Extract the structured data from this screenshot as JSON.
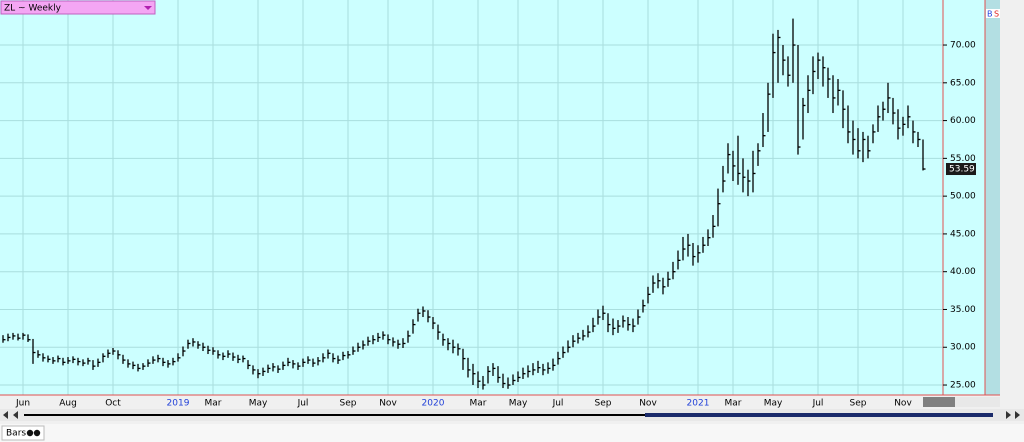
{
  "chart_data": {
    "type": "hlc",
    "title": "ZL ~ Weekly",
    "categories": [
      null,
      null,
      null,
      null,
      "Jun",
      null,
      null,
      null,
      null,
      null,
      null,
      null,
      null,
      "Aug",
      null,
      null,
      null,
      null,
      null,
      null,
      null,
      null,
      "Oct",
      null,
      null,
      null,
      null,
      null,
      null,
      null,
      null,
      null,
      null,
      null,
      null,
      "2019",
      null,
      null,
      null,
      null,
      null,
      null,
      "Mar",
      null,
      null,
      null,
      null,
      null,
      null,
      null,
      null,
      "May",
      null,
      null,
      null,
      null,
      null,
      null,
      null,
      null,
      "Jul",
      null,
      null,
      null,
      null,
      null,
      null,
      null,
      null,
      "Sep",
      null,
      null,
      null,
      null,
      null,
      null,
      null,
      "Nov",
      null,
      null,
      null,
      null,
      null,
      null,
      null,
      null,
      "2020",
      null,
      null,
      null,
      null,
      null,
      null,
      null,
      null,
      "Mar",
      null,
      null,
      null,
      null,
      null,
      null,
      null,
      "May",
      null,
      null,
      null,
      null,
      null,
      null,
      null,
      "Jul",
      null,
      null,
      null,
      null,
      null,
      null,
      null,
      null,
      "Sep",
      null,
      null,
      null,
      null,
      null,
      null,
      null,
      null,
      "Nov",
      null,
      null,
      null,
      null,
      null,
      null,
      null,
      null,
      null,
      "2021",
      null,
      null,
      null,
      null,
      null,
      null,
      "Mar",
      null,
      null,
      null,
      null,
      null,
      null,
      null,
      "May",
      null,
      null,
      null,
      null,
      null,
      null,
      null,
      null,
      "Jul",
      null,
      null,
      null,
      null,
      null,
      null,
      null,
      "Sep",
      null,
      null,
      null,
      null,
      null,
      null,
      null,
      null,
      "Nov",
      null,
      null,
      null,
      null
    ],
    "high": [
      31.6,
      31.8,
      31.9,
      31.8,
      31.9,
      31.7,
      31.1,
      29.6,
      29.2,
      28.9,
      28.7,
      28.9,
      28.6,
      28.7,
      28.8,
      28.6,
      28.4,
      28.6,
      28.3,
      28.5,
      29.2,
      29.7,
      29.9,
      29.6,
      29.0,
      28.4,
      28.1,
      27.8,
      27.9,
      28.4,
      28.8,
      29.0,
      28.6,
      28.3,
      28.6,
      29.2,
      30.1,
      31.0,
      31.2,
      30.8,
      30.6,
      30.2,
      30.0,
      29.6,
      29.3,
      29.6,
      29.3,
      29.0,
      28.9,
      28.3,
      27.6,
      27.1,
      27.3,
      27.7,
      27.9,
      27.6,
      28.1,
      28.6,
      28.3,
      28.0,
      28.5,
      28.8,
      28.5,
      28.7,
      29.2,
      29.7,
      29.2,
      28.9,
      29.4,
      29.5,
      30.1,
      30.6,
      30.9,
      31.4,
      31.6,
      31.9,
      32.1,
      31.7,
      31.3,
      31.0,
      31.2,
      32.2,
      33.7,
      35.1,
      35.4,
      34.9,
      34.0,
      33.0,
      31.8,
      31.2,
      31.0,
      30.5,
      29.8,
      28.6,
      27.8,
      26.8,
      26.2,
      27.5,
      27.9,
      27.5,
      26.5,
      26.0,
      26.4,
      26.8,
      27.3,
      27.6,
      27.9,
      28.2,
      27.8,
      28.0,
      28.5,
      29.4,
      30.1,
      30.9,
      31.6,
      31.9,
      32.3,
      32.9,
      33.9,
      35.0,
      35.5,
      34.5,
      33.8,
      33.6,
      34.2,
      34.0,
      33.8,
      35.0,
      36.3,
      38.0,
      39.5,
      39.8,
      39.2,
      40.0,
      41.3,
      42.8,
      44.6,
      45.0,
      43.8,
      43.5,
      44.6,
      45.6,
      47.5,
      51.0,
      54.0,
      57.0,
      56.0,
      58.0,
      55.0,
      53.5,
      56.0,
      57.0,
      61.0,
      65.0,
      71.5,
      72.0,
      70.0,
      68.5,
      73.5,
      70.0,
      63.0,
      66.0,
      68.5,
      69.0,
      68.5,
      67.0,
      66.0,
      65.5,
      64.0,
      62.0,
      60.0,
      59.0,
      58.5,
      58.0,
      59.5,
      62.0,
      62.5,
      65.0,
      63.0,
      61.5,
      60.5,
      62.0,
      60.0,
      58.5,
      57.5
    ],
    "low": [
      30.6,
      30.8,
      31.0,
      30.9,
      31.0,
      30.7,
      27.8,
      28.6,
      28.1,
      28.0,
      27.8,
      28.0,
      27.6,
      27.8,
      27.9,
      27.6,
      27.5,
      27.7,
      27.0,
      27.4,
      28.0,
      28.6,
      29.0,
      28.4,
      27.8,
      27.3,
      27.1,
      26.8,
      27.0,
      27.4,
      27.8,
      28.0,
      27.5,
      27.3,
      27.6,
      28.1,
      28.8,
      29.8,
      30.1,
      29.8,
      29.5,
      29.1,
      29.0,
      28.5,
      28.3,
      28.6,
      28.2,
      27.9,
      28.0,
      27.1,
      26.4,
      25.9,
      26.2,
      26.6,
      26.8,
      26.6,
      27.0,
      27.5,
      27.2,
      27.0,
      27.4,
      27.8,
      27.4,
      27.6,
      28.0,
      28.5,
      28.0,
      27.8,
      28.3,
      28.5,
      29.0,
      29.4,
      29.7,
      30.2,
      30.4,
      30.7,
      31.0,
      30.4,
      30.1,
      29.8,
      29.9,
      30.6,
      31.8,
      33.4,
      34.0,
      33.3,
      32.4,
      31.0,
      30.2,
      29.6,
      29.2,
      28.9,
      27.0,
      26.0,
      25.0,
      24.6,
      24.4,
      25.2,
      26.2,
      25.3,
      24.6,
      24.5,
      25.0,
      25.4,
      25.8,
      26.0,
      26.3,
      26.6,
      26.3,
      26.5,
      26.9,
      27.7,
      28.6,
      29.3,
      30.0,
      30.5,
      30.9,
      31.3,
      32.0,
      33.0,
      33.6,
      32.0,
      31.6,
      31.9,
      32.6,
      32.2,
      32.0,
      33.0,
      34.6,
      35.8,
      37.2,
      37.8,
      37.0,
      38.0,
      39.0,
      40.3,
      41.5,
      42.0,
      40.8,
      41.2,
      42.5,
      43.4,
      44.5,
      46.0,
      50.5,
      53.0,
      52.0,
      51.5,
      50.5,
      50.0,
      50.5,
      54.0,
      56.5,
      58.5,
      63.0,
      65.0,
      66.0,
      64.5,
      65.0,
      55.5,
      57.5,
      61.0,
      63.5,
      65.5,
      64.5,
      63.0,
      61.0,
      62.0,
      59.0,
      57.0,
      55.5,
      55.0,
      54.5,
      55.0,
      57.0,
      58.5,
      60.0,
      61.0,
      59.5,
      57.5,
      58.0,
      59.0,
      57.0,
      56.5,
      53.4
    ],
    "close": [
      31.0,
      31.3,
      31.5,
      31.2,
      31.6,
      31.0,
      29.3,
      29.0,
      28.6,
      28.4,
      28.2,
      28.5,
      28.0,
      28.2,
      28.4,
      28.1,
      27.9,
      28.2,
      27.5,
      28.0,
      28.8,
      29.2,
      29.5,
      29.0,
      28.3,
      27.8,
      27.6,
      27.2,
      27.5,
      27.9,
      28.3,
      28.5,
      28.0,
      27.8,
      28.1,
      28.6,
      29.5,
      30.5,
      30.7,
      30.3,
      30.0,
      29.6,
      29.5,
      29.0,
      28.8,
      29.1,
      28.7,
      28.4,
      28.5,
      27.6,
      27.0,
      26.5,
      26.8,
      27.2,
      27.4,
      27.1,
      27.6,
      28.0,
      27.8,
      27.5,
      28.0,
      28.3,
      27.9,
      28.2,
      28.6,
      29.2,
      28.5,
      28.3,
      28.9,
      29.0,
      29.5,
      30.0,
      30.3,
      30.8,
      31.0,
      31.3,
      31.6,
      31.0,
      30.7,
      30.4,
      30.5,
      31.5,
      33.0,
      34.5,
      34.8,
      34.0,
      33.2,
      32.0,
      31.0,
      30.5,
      30.0,
      29.8,
      28.5,
      27.0,
      26.5,
      25.5,
      25.0,
      26.8,
      27.2,
      26.0,
      25.2,
      25.0,
      25.6,
      26.0,
      26.5,
      26.8,
      27.0,
      27.3,
      27.0,
      27.2,
      27.6,
      28.5,
      29.3,
      30.0,
      30.8,
      31.2,
      31.5,
      32.0,
      32.8,
      34.0,
      34.5,
      33.0,
      32.5,
      32.8,
      33.5,
      33.0,
      32.8,
      34.0,
      35.5,
      37.0,
      38.5,
      38.8,
      38.0,
      39.0,
      40.0,
      41.5,
      43.0,
      43.5,
      42.0,
      42.5,
      43.5,
      44.5,
      46.0,
      49.0,
      52.0,
      55.5,
      54.0,
      53.0,
      52.5,
      52.0,
      53.0,
      56.0,
      58.0,
      63.5,
      69.0,
      71.0,
      68.0,
      66.0,
      70.0,
      56.5,
      62.0,
      64.0,
      66.5,
      68.0,
      67.0,
      65.5,
      63.0,
      64.0,
      61.5,
      58.5,
      57.5,
      56.0,
      57.5,
      56.0,
      58.5,
      60.5,
      61.5,
      63.0,
      61.0,
      59.0,
      59.5,
      60.5,
      58.5,
      57.5,
      53.59
    ],
    "color": "#000000",
    "year_color": "#1f3fd8",
    "ylim": [
      23.68,
      75.96
    ],
    "yticks": [
      {
        "value": 25,
        "label": "25.00"
      },
      {
        "value": 30,
        "label": "30.00"
      },
      {
        "value": 35,
        "label": "35.00"
      },
      {
        "value": 40,
        "label": "40.00"
      },
      {
        "value": 45,
        "label": "45.00"
      },
      {
        "value": 50,
        "label": "50.00"
      },
      {
        "value": 55,
        "label": "55.00"
      },
      {
        "value": 60,
        "label": "60.00"
      },
      {
        "value": 65,
        "label": "65.00"
      },
      {
        "value": 70,
        "label": "70.00"
      }
    ],
    "grid": true
  },
  "toolbar": {
    "buy": "B",
    "sell": "S",
    "status": "Bars"
  }
}
